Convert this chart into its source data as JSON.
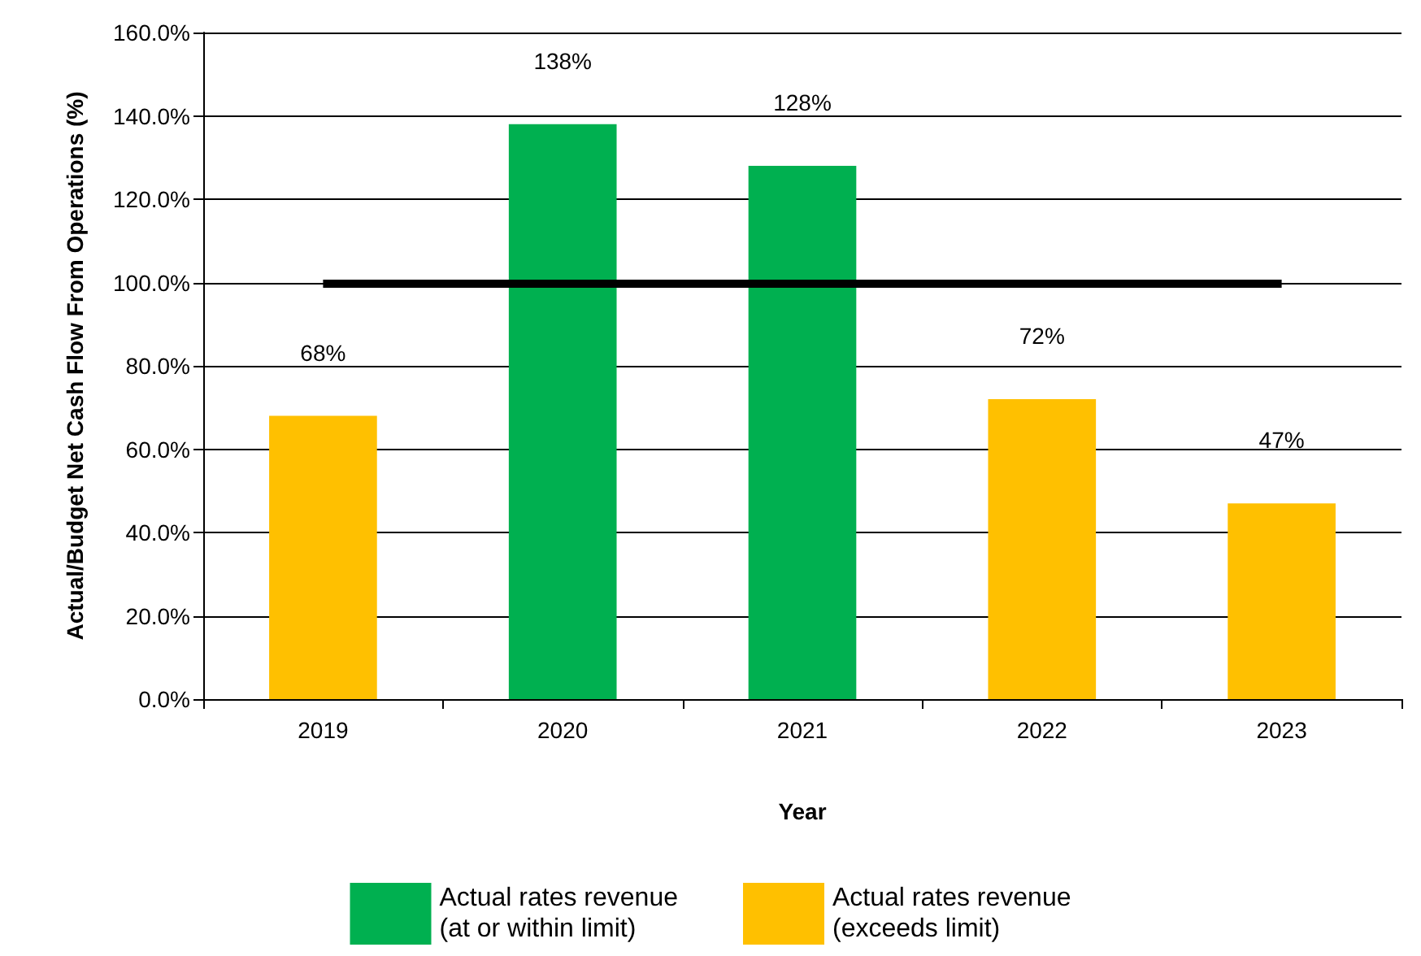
{
  "chart_data": {
    "type": "bar",
    "xlabel": "Year",
    "ylabel": "Actual/Budget Net Cash Flow From Operations (%)",
    "categories": [
      "2019",
      "2020",
      "2021",
      "2022",
      "2023"
    ],
    "series": [
      {
        "name": "Actual rates revenue\n(at or within limit)",
        "color": "#00b050",
        "values": [
          null,
          138,
          128,
          null,
          null
        ],
        "value_labels": [
          null,
          "138%",
          "128%",
          null,
          null
        ]
      },
      {
        "name": "Actual rates revenue\n(exceeds limit)",
        "color": "#ffc000",
        "values": [
          68,
          null,
          null,
          72,
          47
        ],
        "value_labels": [
          "68%",
          null,
          null,
          "72%",
          "47%"
        ]
      }
    ],
    "ylim": [
      0,
      160
    ],
    "yticks": [
      {
        "value": 0,
        "label": "0.0%"
      },
      {
        "value": 20,
        "label": "20.0%"
      },
      {
        "value": 40,
        "label": "40.0%"
      },
      {
        "value": 60,
        "label": "60.0%"
      },
      {
        "value": 80,
        "label": "80.0%"
      },
      {
        "value": 100,
        "label": "100.0%"
      },
      {
        "value": 120,
        "label": "120.0%"
      },
      {
        "value": 140,
        "label": "140.0%"
      },
      {
        "value": 160,
        "label": "160.0%"
      }
    ],
    "grid": "y",
    "legend": "bottom",
    "ref_lines": [
      {
        "axis": "y",
        "value": 100,
        "color": "#000000"
      }
    ]
  }
}
